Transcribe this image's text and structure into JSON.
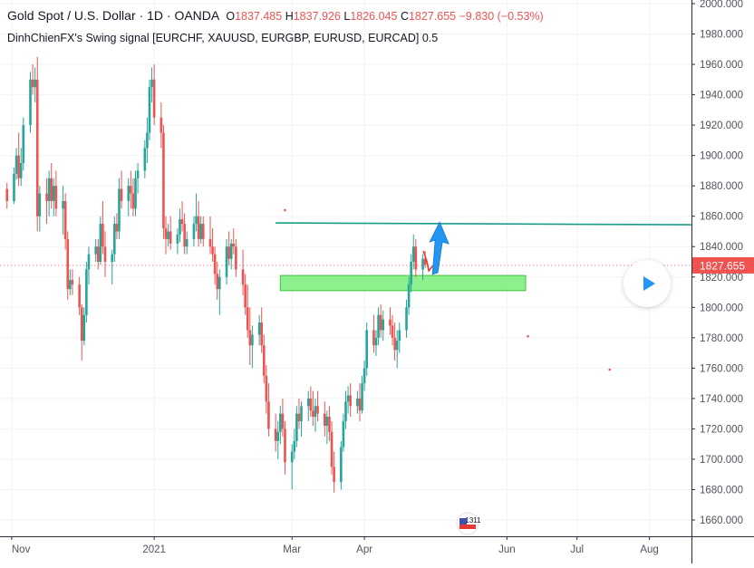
{
  "legend": {
    "symbol": "Gold Spot / U.S. Dollar",
    "sep1": "·",
    "timeframe": "1D",
    "sep2": "·",
    "exchange": "OANDA",
    "open_label": "O",
    "open": "1837.485",
    "high_label": "H",
    "high": "1837.926",
    "low_label": "L",
    "low": "1826.045",
    "close_label": "C",
    "close": "1827.655",
    "change": "−9.830 (−0.53%)",
    "indicator": "DinhChienFX's Swing signal [EURCHF, XAUUSD, EURGBP, EURUSD, EURCAD] 0.5"
  },
  "colors": {
    "up": "#26a69a",
    "down": "#ef5350",
    "resistance_line": "#1b9c8a",
    "support_zone_fill": "#7fee7f",
    "support_zone_border": "#3ec43e",
    "arrow": "#2196f3",
    "price_label_bg": "#ef5350",
    "background": "#ffffff",
    "axis_text": "#50535e"
  },
  "icons": {
    "play": "play-icon",
    "logo": "watermark-logo"
  },
  "watermark_text": "1311",
  "chart_data": {
    "type": "candlestick",
    "title": "Gold Spot / U.S. Dollar",
    "ylim": [
      1650,
      2000
    ],
    "y_ticks": [
      1660,
      1680,
      1700,
      1720,
      1740,
      1760,
      1780,
      1800,
      1820,
      1840,
      1860,
      1880,
      1900,
      1920,
      1940,
      1960,
      1980,
      2000
    ],
    "y_tick_labels": [
      "1660.000",
      "1680.000",
      "1700.000",
      "1720.000",
      "1740.000",
      "1760.000",
      "1780.000",
      "1800.000",
      "1820.000",
      "1840.000",
      "1860.000",
      "1880.000",
      "1900.000",
      "1920.000",
      "1940.000",
      "1960.000",
      "1980.000",
      "2000.000"
    ],
    "x_labels": [
      "Nov",
      "2021",
      "Mar",
      "Apr",
      "Jun",
      "Jul",
      "Aug"
    ],
    "x_label_dates": [
      "2020-11-01",
      "2021-01-01",
      "2021-03-01",
      "2021-04-01",
      "2021-06-01",
      "2021-07-01",
      "2021-08-01"
    ],
    "xlim": [
      "2020-10-27",
      "2021-08-19"
    ],
    "candles_start": "2020-10-30",
    "last_price": 1827.655,
    "last_price_label": "1827.655",
    "candles": [
      [
        1878,
        1882,
        1865,
        1870
      ],
      [
        1870,
        1892,
        1868,
        1888
      ],
      [
        1888,
        1905,
        1884,
        1900
      ],
      [
        1900,
        1915,
        1880,
        1885
      ],
      [
        1885,
        1905,
        1880,
        1895
      ],
      [
        1895,
        1925,
        1890,
        1920
      ],
      [
        1920,
        1955,
        1915,
        1950
      ],
      [
        1950,
        1960,
        1940,
        1945
      ],
      [
        1945,
        1958,
        1935,
        1950
      ],
      [
        1950,
        1965,
        1850,
        1860
      ],
      [
        1860,
        1880,
        1850,
        1875
      ],
      [
        1875,
        1885,
        1855,
        1870
      ],
      [
        1870,
        1890,
        1860,
        1885
      ],
      [
        1885,
        1895,
        1865,
        1870
      ],
      [
        1870,
        1885,
        1860,
        1880
      ],
      [
        1880,
        1890,
        1860,
        1865
      ],
      [
        1865,
        1880,
        1848,
        1870
      ],
      [
        1870,
        1875,
        1838,
        1845
      ],
      [
        1845,
        1850,
        1805,
        1812
      ],
      [
        1812,
        1825,
        1808,
        1818
      ],
      [
        1818,
        1825,
        1808,
        1815
      ],
      [
        1815,
        1820,
        1795,
        1800
      ],
      [
        1800,
        1802,
        1765,
        1778
      ],
      [
        1778,
        1800,
        1775,
        1795
      ],
      [
        1795,
        1830,
        1790,
        1825
      ],
      [
        1825,
        1840,
        1815,
        1835
      ],
      [
        1835,
        1845,
        1830,
        1840
      ],
      [
        1840,
        1845,
        1825,
        1830
      ],
      [
        1830,
        1860,
        1828,
        1855
      ],
      [
        1855,
        1870,
        1835,
        1840
      ],
      [
        1840,
        1850,
        1820,
        1830
      ],
      [
        1830,
        1838,
        1815,
        1835
      ],
      [
        1835,
        1860,
        1830,
        1855
      ],
      [
        1855,
        1862,
        1845,
        1850
      ],
      [
        1850,
        1885,
        1845,
        1878
      ],
      [
        1878,
        1890,
        1865,
        1870
      ],
      [
        1870,
        1885,
        1860,
        1880
      ],
      [
        1880,
        1890,
        1865,
        1875
      ],
      [
        1875,
        1885,
        1860,
        1865
      ],
      [
        1865,
        1890,
        1860,
        1885
      ],
      [
        1885,
        1895,
        1875,
        1890
      ],
      [
        1890,
        1910,
        1885,
        1905
      ],
      [
        1905,
        1925,
        1895,
        1915
      ],
      [
        1915,
        1950,
        1910,
        1945
      ],
      [
        1945,
        1958,
        1935,
        1950
      ],
      [
        1950,
        1960,
        1920,
        1925
      ],
      [
        1925,
        1935,
        1905,
        1915
      ],
      [
        1915,
        1920,
        1845,
        1852
      ],
      [
        1852,
        1860,
        1835,
        1845
      ],
      [
        1845,
        1855,
        1840,
        1850
      ],
      [
        1850,
        1860,
        1838,
        1842
      ],
      [
        1842,
        1852,
        1835,
        1848
      ],
      [
        1848,
        1865,
        1843,
        1858
      ],
      [
        1858,
        1870,
        1850,
        1855
      ],
      [
        1855,
        1862,
        1835,
        1840
      ],
      [
        1840,
        1850,
        1835,
        1845
      ],
      [
        1845,
        1860,
        1840,
        1855
      ],
      [
        1855,
        1875,
        1850,
        1860
      ],
      [
        1860,
        1870,
        1840,
        1845
      ],
      [
        1845,
        1860,
        1842,
        1855
      ],
      [
        1855,
        1860,
        1840,
        1845
      ],
      [
        1845,
        1860,
        1835,
        1840
      ],
      [
        1840,
        1852,
        1830,
        1835
      ],
      [
        1835,
        1840,
        1815,
        1822
      ],
      [
        1822,
        1830,
        1805,
        1812
      ],
      [
        1812,
        1825,
        1795,
        1820
      ],
      [
        1820,
        1845,
        1815,
        1840
      ],
      [
        1840,
        1850,
        1828,
        1832
      ],
      [
        1832,
        1845,
        1825,
        1842
      ],
      [
        1842,
        1852,
        1835,
        1840
      ],
      [
        1840,
        1845,
        1820,
        1825
      ],
      [
        1825,
        1838,
        1808,
        1815
      ],
      [
        1815,
        1822,
        1795,
        1800
      ],
      [
        1800,
        1815,
        1780,
        1785
      ],
      [
        1785,
        1800,
        1762,
        1775
      ],
      [
        1775,
        1788,
        1760,
        1782
      ],
      [
        1782,
        1795,
        1775,
        1790
      ],
      [
        1790,
        1800,
        1770,
        1775
      ],
      [
        1775,
        1782,
        1750,
        1755
      ],
      [
        1755,
        1762,
        1730,
        1738
      ],
      [
        1738,
        1750,
        1715,
        1720
      ],
      [
        1720,
        1730,
        1705,
        1712
      ],
      [
        1712,
        1725,
        1700,
        1718
      ],
      [
        1718,
        1735,
        1710,
        1730
      ],
      [
        1730,
        1740,
        1715,
        1720
      ],
      [
        1720,
        1725,
        1690,
        1698
      ],
      [
        1698,
        1710,
        1680,
        1705
      ],
      [
        1705,
        1720,
        1700,
        1712
      ],
      [
        1712,
        1735,
        1708,
        1730
      ],
      [
        1730,
        1740,
        1720,
        1725
      ],
      [
        1725,
        1738,
        1715,
        1735
      ],
      [
        1735,
        1745,
        1725,
        1740
      ],
      [
        1740,
        1748,
        1728,
        1732
      ],
      [
        1732,
        1745,
        1722,
        1728
      ],
      [
        1728,
        1740,
        1718,
        1735
      ],
      [
        1735,
        1745,
        1725,
        1730
      ],
      [
        1730,
        1738,
        1715,
        1722
      ],
      [
        1722,
        1732,
        1710,
        1728
      ],
      [
        1728,
        1735,
        1712,
        1718
      ],
      [
        1718,
        1725,
        1690,
        1695
      ],
      [
        1695,
        1705,
        1678,
        1685
      ],
      [
        1685,
        1712,
        1680,
        1708
      ],
      [
        1708,
        1730,
        1705,
        1725
      ],
      [
        1725,
        1745,
        1720,
        1738
      ],
      [
        1738,
        1748,
        1730,
        1742
      ],
      [
        1742,
        1750,
        1728,
        1735
      ],
      [
        1735,
        1745,
        1730,
        1740
      ],
      [
        1740,
        1750,
        1725,
        1732
      ],
      [
        1732,
        1755,
        1730,
        1750
      ],
      [
        1750,
        1765,
        1745,
        1760
      ],
      [
        1760,
        1790,
        1755,
        1785
      ],
      [
        1785,
        1795,
        1770,
        1775
      ],
      [
        1775,
        1785,
        1768,
        1780
      ],
      [
        1780,
        1800,
        1775,
        1795
      ],
      [
        1795,
        1802,
        1780,
        1785
      ],
      [
        1785,
        1798,
        1778,
        1792
      ],
      [
        1792,
        1800,
        1782,
        1788
      ],
      [
        1788,
        1795,
        1775,
        1780
      ],
      [
        1780,
        1790,
        1765,
        1772
      ],
      [
        1772,
        1785,
        1760,
        1778
      ],
      [
        1778,
        1790,
        1770,
        1785
      ],
      [
        1785,
        1805,
        1780,
        1800
      ],
      [
        1800,
        1820,
        1795,
        1815
      ],
      [
        1815,
        1835,
        1810,
        1830
      ],
      [
        1830,
        1848,
        1825,
        1840
      ],
      [
        1840,
        1845,
        1820,
        1825
      ],
      [
        1825,
        1835,
        1818,
        1832
      ],
      [
        1832,
        1837,
        1826,
        1828
      ]
    ],
    "resistance_level": 1855,
    "resistance_start": "2021-02-22",
    "support_zone": [
      1811,
      1821
    ],
    "support_zone_start": "2021-02-24",
    "support_zone_end": "2021-06-09",
    "markers": [
      {
        "date": "2021-02-26",
        "price": 1864
      },
      {
        "date": "2021-06-10",
        "price": 1781
      },
      {
        "date": "2021-07-15",
        "price": 1759
      }
    ]
  }
}
